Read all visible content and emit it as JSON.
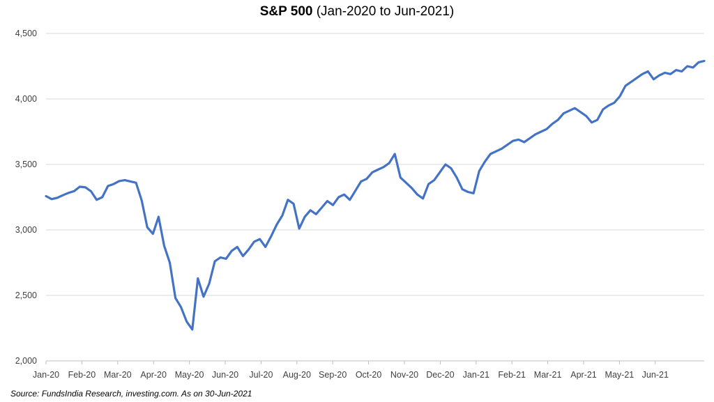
{
  "title": {
    "main": "S&P 500",
    "sub": "(Jan-2020 to Jun-2021)"
  },
  "source": "Source: FundsIndia Research, investing.com. As on 30-Jun-2021",
  "colors": {
    "line": "#4472C4",
    "grid": "#D9D9D9",
    "axis": "#BFBFBF"
  },
  "chart_data": {
    "type": "line",
    "title": "S&P 500 (Jan-2020 to Jun-2021)",
    "xlabel": "",
    "ylabel": "",
    "ylim": [
      2000,
      4500
    ],
    "yticks": [
      2000,
      2500,
      3000,
      3500,
      4000,
      4500
    ],
    "ytick_labels": [
      "2,000",
      "2,500",
      "3,000",
      "3,500",
      "4,000",
      "4,500"
    ],
    "xtick_labels": [
      "Jan-20",
      "Feb-20",
      "Mar-20",
      "Apr-20",
      "May-20",
      "Jun-20",
      "Jul-20",
      "Aug-20",
      "Sep-20",
      "Oct-20",
      "Nov-20",
      "Dec-20",
      "Jan-21",
      "Feb-21",
      "Mar-21",
      "Apr-21",
      "May-21",
      "Jun-21"
    ],
    "grid": true,
    "legend": "none",
    "series": [
      {
        "values": [
          3258,
          3235,
          3245,
          3265,
          3283,
          3296,
          3330,
          3325,
          3295,
          3230,
          3250,
          3335,
          3350,
          3373,
          3380,
          3370,
          3360,
          3225,
          3020,
          2970,
          3100,
          2880,
          2750,
          2480,
          2410,
          2300,
          2240,
          2630,
          2490,
          2590,
          2760,
          2790,
          2780,
          2840,
          2870,
          2800,
          2850,
          2910,
          2930,
          2870,
          2950,
          3040,
          3110,
          3230,
          3200,
          3010,
          3100,
          3150,
          3120,
          3170,
          3220,
          3190,
          3250,
          3270,
          3230,
          3300,
          3370,
          3390,
          3440,
          3460,
          3480,
          3510,
          3580,
          3400,
          3360,
          3320,
          3270,
          3240,
          3350,
          3380,
          3440,
          3500,
          3470,
          3400,
          3310,
          3290,
          3280,
          3450,
          3520,
          3580,
          3600,
          3620,
          3650,
          3680,
          3690,
          3670,
          3700,
          3730,
          3750,
          3770,
          3810,
          3840,
          3890,
          3910,
          3930,
          3900,
          3870,
          3820,
          3840,
          3920,
          3950,
          3970,
          4020,
          4100,
          4130,
          4160,
          4190,
          4210,
          4150,
          4180,
          4200,
          4190,
          4220,
          4210,
          4250,
          4240,
          4280,
          4290
        ],
        "color": "#4472C4"
      }
    ]
  }
}
